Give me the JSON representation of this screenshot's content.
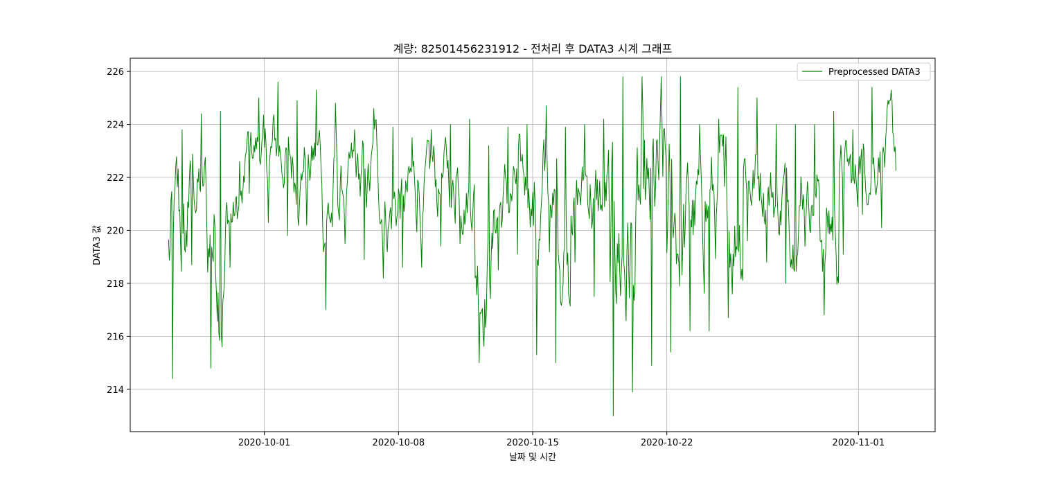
{
  "chart_data": {
    "type": "line",
    "title": "계량: 82501456231912 - 전처리 후 DATA3 시계 그래프",
    "xlabel": "날짜 및 시간",
    "ylabel": "DATA3 값",
    "x_range": [
      "2020-09-24",
      "2020-11-05"
    ],
    "ylim": [
      212.4,
      226.5
    ],
    "x_ticks": [
      "2020-10-01",
      "2020-10-08",
      "2020-10-15",
      "2020-10-22",
      "2020-11-01"
    ],
    "y_ticks": [
      214,
      216,
      218,
      220,
      222,
      224,
      226
    ],
    "grid": true,
    "legend": {
      "position": "top-right"
    },
    "series": [
      {
        "name": "Preprocessed DATA3",
        "color": "#008000",
        "x": [
          "2020-09-26",
          "2020-09-27",
          "2020-09-28",
          "2020-09-29",
          "2020-09-30",
          "2020-10-01",
          "2020-10-02",
          "2020-10-03",
          "2020-10-04",
          "2020-10-05",
          "2020-10-06",
          "2020-10-07",
          "2020-10-08",
          "2020-10-09",
          "2020-10-10",
          "2020-10-11",
          "2020-10-12",
          "2020-10-13",
          "2020-10-14",
          "2020-10-15",
          "2020-10-16",
          "2020-10-17",
          "2020-10-18",
          "2020-10-19",
          "2020-10-20",
          "2020-10-21",
          "2020-10-22",
          "2020-10-23",
          "2020-10-24",
          "2020-10-25",
          "2020-10-26",
          "2020-10-27",
          "2020-10-28",
          "2020-10-29",
          "2020-10-30",
          "2020-10-31",
          "2020-11-01",
          "2020-11-02"
        ],
        "y_min": [
          214.4,
          218.7,
          214.8,
          218.6,
          221.4,
          220.3,
          219.8,
          220.2,
          217.0,
          219.5,
          218.9,
          218.2,
          218.6,
          218.6,
          219.4,
          219.5,
          215.0,
          218.5,
          219.1,
          215.3,
          215.0,
          218.8,
          217.5,
          213.0,
          213.9,
          214.9,
          215.4,
          216.2,
          216.2,
          216.7,
          219.6,
          218.8,
          218.0,
          219.4,
          216.8,
          219.1,
          220.6,
          220.1
        ],
        "y_max": [
          223.8,
          224.4,
          224.5,
          222.6,
          225.0,
          225.6,
          224.9,
          225.3,
          224.8,
          223.8,
          224.6,
          223.9,
          223.5,
          223.8,
          224.0,
          224.2,
          223.2,
          223.9,
          224.0,
          224.7,
          223.9,
          224.0,
          224.2,
          225.8,
          225.8,
          225.8,
          225.8,
          224.0,
          224.2,
          225.4,
          225.0,
          224.0,
          224.0,
          224.0,
          224.5,
          223.8,
          225.4,
          225.3
        ]
      }
    ]
  }
}
